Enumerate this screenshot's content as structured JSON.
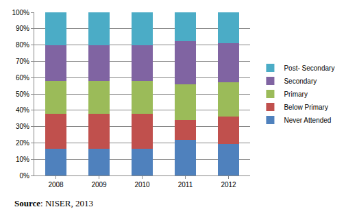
{
  "chart_data": {
    "type": "bar",
    "stacked": true,
    "categories": [
      "2008",
      "2009",
      "2010",
      "2011",
      "2012"
    ],
    "series": [
      {
        "name": "Never Attended",
        "color": "#4f81bd",
        "values": [
          16.5,
          16.5,
          16.5,
          22,
          19.5
        ]
      },
      {
        "name": "Below Primary",
        "color": "#c0504d",
        "values": [
          21.5,
          21.5,
          21.5,
          12,
          16.5
        ]
      },
      {
        "name": "Primary",
        "color": "#9bbb59",
        "values": [
          20,
          20,
          20,
          22,
          21
        ]
      },
      {
        "name": "Secondary",
        "color": "#8064a2",
        "values": [
          22,
          22,
          22,
          26.5,
          24
        ]
      },
      {
        "name": "Post- Secondary",
        "color": "#4bacc6",
        "values": [
          20,
          20,
          20,
          17.5,
          19
        ]
      }
    ],
    "ylim": [
      0,
      100
    ],
    "yticks": [
      {
        "value": 0,
        "label": "0%"
      },
      {
        "value": 10,
        "label": "10%"
      },
      {
        "value": 20,
        "label": "20%"
      },
      {
        "value": 30,
        "label": "30%"
      },
      {
        "value": 40,
        "label": "40%"
      },
      {
        "value": 50,
        "label": "50%"
      },
      {
        "value": 60,
        "label": "60%"
      },
      {
        "value": 70,
        "label": "70%"
      },
      {
        "value": 80,
        "label": "80%"
      },
      {
        "value": 90,
        "label": "90%"
      },
      {
        "value": 100,
        "label": "100%"
      }
    ],
    "grid": true,
    "legend": "right",
    "source": "Source: NISER, 2013"
  }
}
